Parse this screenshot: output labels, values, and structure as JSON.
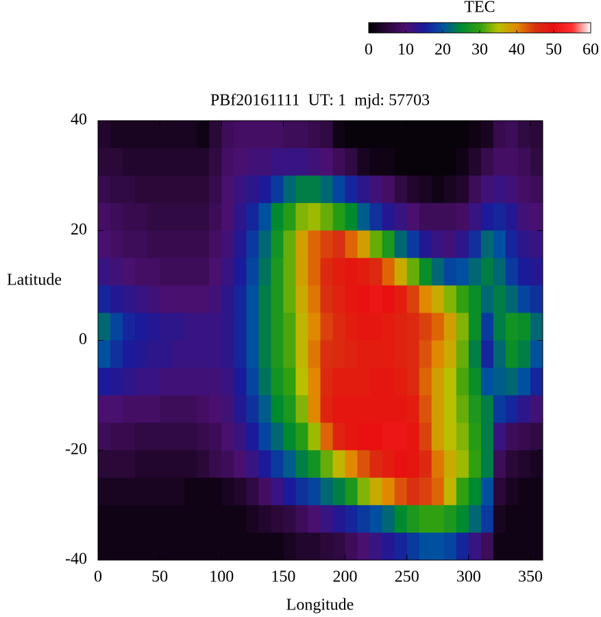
{
  "chart_data": {
    "type": "heatmap",
    "title": "PBf20161111  UT: 1  mjd: 57703",
    "xlabel": "Longitude",
    "ylabel": "Latitude",
    "xlim": [
      0,
      360
    ],
    "xticks": [
      0,
      50,
      100,
      150,
      200,
      250,
      300,
      350
    ],
    "ylim": [
      -40,
      40
    ],
    "yticks": [
      -40,
      -20,
      0,
      20,
      40
    ],
    "colorbar": {
      "label": "TEC",
      "clim": [
        0,
        60
      ],
      "ticks": [
        0,
        10,
        20,
        30,
        40,
        50,
        60
      ],
      "colors": [
        "#000000",
        "#2a0838",
        "#4a1070",
        "#1a1a9a",
        "#0050a0",
        "#008a30",
        "#30a010",
        "#b8c000",
        "#e08800",
        "#d83010",
        "#e81010",
        "#ff3030",
        "#ffffff"
      ]
    },
    "x": [
      5,
      15,
      25,
      35,
      45,
      55,
      65,
      75,
      85,
      95,
      105,
      115,
      125,
      135,
      145,
      155,
      165,
      175,
      185,
      195,
      205,
      215,
      225,
      235,
      245,
      255,
      265,
      275,
      285,
      295,
      305,
      315,
      325,
      335,
      345,
      355
    ],
    "y": [
      37.5,
      32.5,
      27.5,
      22.5,
      17.5,
      12.5,
      7.5,
      2.5,
      -2.5,
      -7.5,
      -12.5,
      -17.5,
      -22.5,
      -27.5,
      -32.5,
      -37.5
    ],
    "z": [
      [
        4,
        3,
        3,
        3,
        3,
        3,
        3,
        3,
        2,
        5,
        8,
        9,
        9,
        9,
        9,
        8,
        8,
        7,
        6,
        2,
        1,
        1,
        1,
        1,
        1,
        1,
        1,
        1,
        1,
        1,
        2,
        3,
        7,
        8,
        6,
        5
      ],
      [
        5,
        5,
        4,
        4,
        4,
        4,
        4,
        4,
        4,
        6,
        9,
        10,
        11,
        11,
        12,
        12,
        12,
        11,
        10,
        8,
        6,
        3,
        2,
        2,
        1,
        1,
        1,
        1,
        1,
        2,
        4,
        7,
        9,
        9,
        8,
        6
      ],
      [
        7,
        6,
        6,
        5,
        5,
        5,
        5,
        5,
        5,
        7,
        10,
        12,
        13,
        15,
        18,
        22,
        24,
        24,
        22,
        19,
        16,
        13,
        11,
        9,
        6,
        4,
        3,
        2,
        3,
        4,
        8,
        11,
        12,
        11,
        9,
        8
      ],
      [
        9,
        8,
        7,
        7,
        6,
        6,
        6,
        6,
        6,
        8,
        10,
        13,
        16,
        20,
        25,
        29,
        33,
        34,
        32,
        29,
        25,
        21,
        17,
        14,
        12,
        10,
        8,
        8,
        8,
        9,
        12,
        15,
        16,
        14,
        11,
        10
      ],
      [
        10,
        9,
        8,
        8,
        7,
        7,
        7,
        7,
        7,
        9,
        11,
        14,
        18,
        22,
        27,
        32,
        38,
        42,
        44,
        45,
        42,
        38,
        32,
        28,
        22,
        18,
        14,
        12,
        11,
        13,
        17,
        22,
        20,
        16,
        13,
        12
      ],
      [
        12,
        11,
        10,
        9,
        9,
        8,
        8,
        8,
        8,
        10,
        12,
        15,
        19,
        23,
        28,
        32,
        38,
        42,
        46,
        48,
        49,
        48,
        46,
        42,
        37,
        32,
        26,
        22,
        19,
        20,
        22,
        24,
        22,
        18,
        15,
        14
      ],
      [
        16,
        14,
        13,
        12,
        11,
        10,
        10,
        10,
        10,
        11,
        13,
        16,
        20,
        24,
        28,
        32,
        37,
        41,
        45,
        47,
        49,
        50,
        51,
        50,
        48,
        44,
        40,
        37,
        33,
        30,
        26,
        22,
        24,
        22,
        19,
        17
      ],
      [
        22,
        19,
        16,
        15,
        14,
        13,
        13,
        12,
        12,
        12,
        13,
        16,
        20,
        24,
        28,
        31,
        36,
        40,
        44,
        46,
        48,
        49,
        49,
        48,
        47,
        46,
        44,
        42,
        38,
        33,
        26,
        18,
        24,
        27,
        26,
        22
      ],
      [
        20,
        17,
        15,
        14,
        13,
        13,
        12,
        12,
        12,
        12,
        13,
        16,
        20,
        24,
        28,
        31,
        36,
        41,
        45,
        46,
        47,
        48,
        48,
        48,
        47,
        46,
        43,
        40,
        37,
        32,
        24,
        16,
        22,
        26,
        24,
        20
      ],
      [
        15,
        14,
        13,
        12,
        12,
        11,
        11,
        11,
        11,
        11,
        12,
        15,
        19,
        23,
        27,
        30,
        35,
        40,
        46,
        48,
        48,
        48,
        49,
        49,
        48,
        46,
        42,
        38,
        35,
        31,
        26,
        20,
        21,
        22,
        20,
        16
      ],
      [
        10,
        10,
        9,
        9,
        9,
        8,
        8,
        8,
        9,
        10,
        11,
        14,
        17,
        21,
        25,
        28,
        33,
        40,
        47,
        49,
        49,
        49,
        49,
        49,
        49,
        48,
        43,
        38,
        35,
        32,
        28,
        24,
        18,
        16,
        13,
        11
      ],
      [
        8,
        7,
        7,
        6,
        6,
        6,
        6,
        6,
        7,
        8,
        10,
        12,
        15,
        19,
        22,
        25,
        29,
        34,
        42,
        47,
        49,
        50,
        50,
        51,
        51,
        49,
        44,
        38,
        35,
        33,
        29,
        24,
        12,
        8,
        7,
        6
      ],
      [
        5,
        5,
        5,
        4,
        4,
        4,
        4,
        4,
        5,
        7,
        8,
        10,
        12,
        15,
        18,
        21,
        24,
        27,
        32,
        36,
        40,
        43,
        46,
        48,
        50,
        49,
        46,
        41,
        37,
        34,
        30,
        24,
        8,
        5,
        4,
        3
      ],
      [
        3,
        3,
        3,
        3,
        3,
        3,
        3,
        2,
        2,
        2,
        3,
        4,
        6,
        9,
        12,
        15,
        17,
        19,
        22,
        24,
        28,
        33,
        37,
        40,
        43,
        45,
        44,
        42,
        36,
        30,
        25,
        20,
        5,
        3,
        2,
        2
      ],
      [
        2,
        2,
        2,
        2,
        2,
        2,
        2,
        2,
        2,
        2,
        2,
        2,
        3,
        4,
        5,
        6,
        8,
        10,
        12,
        14,
        16,
        18,
        20,
        22,
        25,
        28,
        30,
        30,
        28,
        25,
        22,
        18,
        3,
        2,
        2,
        2
      ],
      [
        2,
        2,
        2,
        2,
        2,
        2,
        2,
        2,
        2,
        2,
        2,
        2,
        2,
        2,
        2,
        3,
        4,
        4,
        5,
        6,
        8,
        10,
        12,
        14,
        16,
        18,
        20,
        20,
        19,
        16,
        12,
        8,
        2,
        2,
        2,
        2
      ]
    ]
  }
}
